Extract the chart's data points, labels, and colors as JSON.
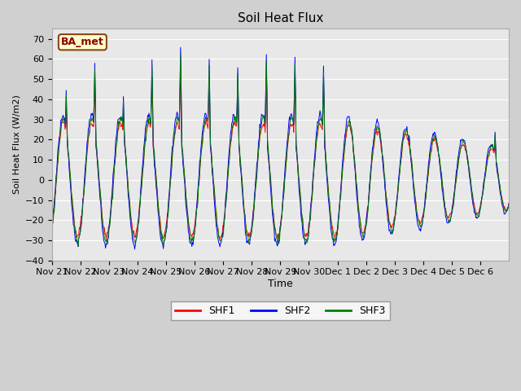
{
  "title": "Soil Heat Flux",
  "ylabel": "Soil Heat Flux (W/m2)",
  "xlabel": "Time",
  "ylim": [
    -40,
    75
  ],
  "yticks": [
    -40,
    -30,
    -20,
    -10,
    0,
    10,
    20,
    30,
    40,
    50,
    60,
    70
  ],
  "annotation": "BA_met",
  "legend": [
    "SHF1",
    "SHF2",
    "SHF3"
  ],
  "colors_shf": [
    "red",
    "blue",
    "green"
  ],
  "background_axes": "#e8e8e8",
  "x_labels": [
    "Nov 21",
    "Nov 22",
    "Nov 23",
    "Nov 24",
    "Nov 25",
    "Nov 26",
    "Nov 27",
    "Nov 28",
    "Nov 29",
    "Nov 30",
    "Dec 1",
    "Dec 2",
    "Dec 3",
    "Dec 4",
    "Dec 5",
    "Dec 6"
  ],
  "n_days": 16,
  "n_per_day": 48
}
